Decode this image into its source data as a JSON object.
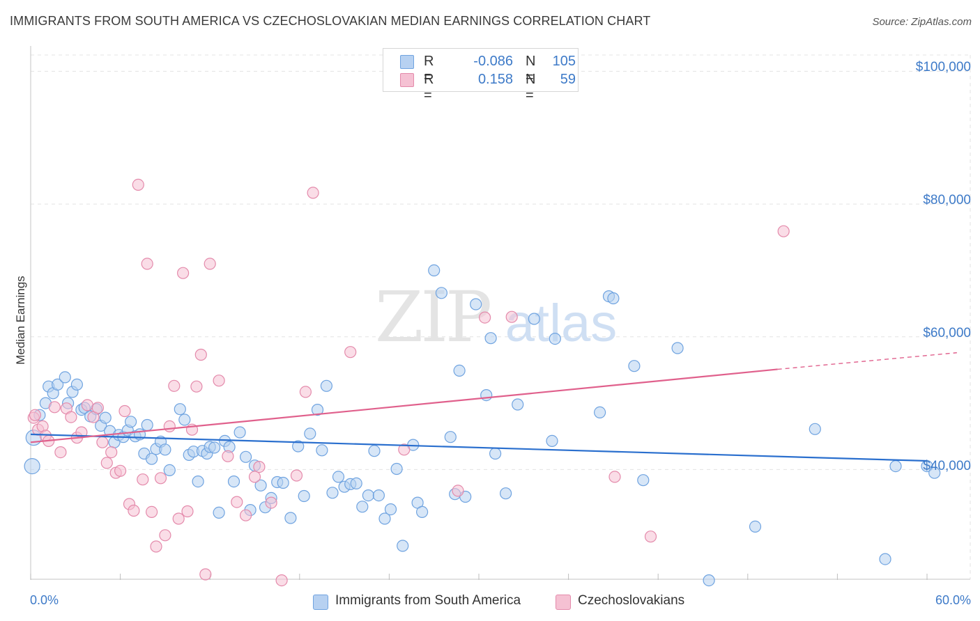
{
  "title": "IMMIGRANTS FROM SOUTH AMERICA VS CZECHOSLOVAKIAN MEDIAN EARNINGS CORRELATION CHART",
  "source": "Source: ZipAtlas.com",
  "watermark": {
    "zip": "ZIP",
    "atlas": "atlas"
  },
  "legend_top": [
    {
      "r_label": "R =",
      "r_value": "-0.086",
      "n_label": "N =",
      "n_value": "105"
    },
    {
      "r_label": "R =",
      "r_value": "0.158",
      "n_label": "N =",
      "n_value": "59"
    }
  ],
  "chart_data": {
    "type": "scatter",
    "title": "IMMIGRANTS FROM SOUTH AMERICA VS CZECHOSLOVAKIAN MEDIAN EARNINGS CORRELATION CHART",
    "xlabel": "",
    "ylabel": "Median Earnings",
    "xlim": [
      0,
      60
    ],
    "ylim": [
      22000,
      102000
    ],
    "x_tick_labels": [
      "0.0%",
      "60.0%"
    ],
    "y_ticks": [
      40000,
      60000,
      80000,
      100000
    ],
    "y_tick_labels": [
      "$40,000",
      "$60,000",
      "$80,000",
      "$100,000"
    ],
    "grid": true,
    "legend_position": "bottom",
    "series": [
      {
        "name": "Immigrants from South America",
        "color": "#6fa3e0",
        "fill": "#b7d1f1",
        "trend": {
          "x": [
            0,
            60
          ],
          "y": [
            45300,
            41300
          ],
          "color": "#2a6fce"
        },
        "points": [
          [
            0.1,
            40500
          ],
          [
            0.2,
            44800
          ],
          [
            0.6,
            48200
          ],
          [
            1.0,
            50000
          ],
          [
            1.2,
            52500
          ],
          [
            1.5,
            51500
          ],
          [
            1.8,
            52800
          ],
          [
            2.3,
            53900
          ],
          [
            2.5,
            50000
          ],
          [
            2.8,
            51700
          ],
          [
            3.1,
            52800
          ],
          [
            3.4,
            49000
          ],
          [
            3.6,
            49300
          ],
          [
            4.0,
            48000
          ],
          [
            4.4,
            49100
          ],
          [
            4.7,
            46600
          ],
          [
            5.0,
            47800
          ],
          [
            5.3,
            45800
          ],
          [
            5.6,
            44100
          ],
          [
            5.9,
            45200
          ],
          [
            6.2,
            44900
          ],
          [
            6.5,
            45900
          ],
          [
            6.7,
            47200
          ],
          [
            7.0,
            45000
          ],
          [
            7.3,
            45300
          ],
          [
            7.6,
            42400
          ],
          [
            7.8,
            46700
          ],
          [
            8.1,
            41600
          ],
          [
            8.4,
            43100
          ],
          [
            8.7,
            44200
          ],
          [
            9.0,
            43000
          ],
          [
            9.3,
            39900
          ],
          [
            10.0,
            49100
          ],
          [
            10.3,
            47500
          ],
          [
            10.6,
            42200
          ],
          [
            10.9,
            42700
          ],
          [
            11.2,
            38200
          ],
          [
            11.5,
            42800
          ],
          [
            11.8,
            42400
          ],
          [
            12.0,
            43400
          ],
          [
            12.3,
            43300
          ],
          [
            12.6,
            33500
          ],
          [
            13.0,
            44300
          ],
          [
            13.3,
            43400
          ],
          [
            13.6,
            38200
          ],
          [
            14.0,
            45600
          ],
          [
            14.4,
            41900
          ],
          [
            14.7,
            33900
          ],
          [
            15.0,
            40600
          ],
          [
            15.4,
            37600
          ],
          [
            15.7,
            34300
          ],
          [
            16.1,
            35700
          ],
          [
            16.5,
            38100
          ],
          [
            16.9,
            38000
          ],
          [
            17.4,
            32700
          ],
          [
            17.9,
            43500
          ],
          [
            18.3,
            36000
          ],
          [
            18.7,
            45400
          ],
          [
            19.2,
            49000
          ],
          [
            19.5,
            42900
          ],
          [
            19.8,
            52600
          ],
          [
            20.2,
            36500
          ],
          [
            20.6,
            38900
          ],
          [
            21.0,
            37400
          ],
          [
            21.4,
            37800
          ],
          [
            21.8,
            37900
          ],
          [
            22.2,
            34400
          ],
          [
            22.6,
            36100
          ],
          [
            23.0,
            42800
          ],
          [
            23.3,
            36100
          ],
          [
            23.7,
            32600
          ],
          [
            24.1,
            34000
          ],
          [
            24.5,
            40100
          ],
          [
            24.9,
            28500
          ],
          [
            25.6,
            43700
          ],
          [
            25.9,
            35000
          ],
          [
            26.2,
            33600
          ],
          [
            27.0,
            70000
          ],
          [
            27.5,
            66600
          ],
          [
            28.1,
            44900
          ],
          [
            28.4,
            36300
          ],
          [
            28.7,
            54900
          ],
          [
            29.1,
            35900
          ],
          [
            29.8,
            64900
          ],
          [
            30.5,
            51200
          ],
          [
            30.8,
            59800
          ],
          [
            31.1,
            42400
          ],
          [
            31.8,
            36400
          ],
          [
            32.6,
            49800
          ],
          [
            33.7,
            62700
          ],
          [
            34.9,
            44300
          ],
          [
            35.1,
            59700
          ],
          [
            38.1,
            48600
          ],
          [
            38.7,
            66100
          ],
          [
            39.0,
            65800
          ],
          [
            40.4,
            55600
          ],
          [
            41.0,
            38400
          ],
          [
            43.3,
            58300
          ],
          [
            45.4,
            23300
          ],
          [
            48.5,
            31400
          ],
          [
            52.5,
            46100
          ],
          [
            57.2,
            26500
          ],
          [
            60.0,
            40500
          ],
          [
            60.5,
            39500
          ],
          [
            57.9,
            40500
          ]
        ]
      },
      {
        "name": "Czechoslovakians",
        "color": "#e48aab",
        "fill": "#f5c1d3",
        "trend": {
          "x": [
            0,
            50
          ],
          "y": [
            44100,
            55100
          ],
          "dash_x": [
            50,
            62
          ],
          "dash_y": [
            55100,
            57600
          ],
          "color": "#e0608c"
        },
        "points": [
          [
            0.2,
            47800
          ],
          [
            0.3,
            48200
          ],
          [
            0.5,
            46000
          ],
          [
            0.8,
            46500
          ],
          [
            1.0,
            45100
          ],
          [
            1.2,
            44300
          ],
          [
            1.6,
            49400
          ],
          [
            2.0,
            42600
          ],
          [
            2.4,
            49200
          ],
          [
            2.7,
            47900
          ],
          [
            3.1,
            44800
          ],
          [
            3.4,
            45600
          ],
          [
            3.8,
            49700
          ],
          [
            4.2,
            47900
          ],
          [
            4.5,
            49300
          ],
          [
            4.8,
            44100
          ],
          [
            5.1,
            41000
          ],
          [
            5.4,
            42600
          ],
          [
            5.7,
            39500
          ],
          [
            6.0,
            39800
          ],
          [
            6.3,
            48800
          ],
          [
            6.6,
            34800
          ],
          [
            6.9,
            33800
          ],
          [
            7.2,
            82900
          ],
          [
            7.5,
            38500
          ],
          [
            7.8,
            71000
          ],
          [
            8.1,
            33600
          ],
          [
            8.4,
            28400
          ],
          [
            8.7,
            38700
          ],
          [
            9.0,
            30100
          ],
          [
            9.3,
            46500
          ],
          [
            9.6,
            52600
          ],
          [
            9.9,
            32600
          ],
          [
            10.2,
            69600
          ],
          [
            10.5,
            33700
          ],
          [
            10.8,
            46000
          ],
          [
            11.1,
            52500
          ],
          [
            11.4,
            57300
          ],
          [
            11.7,
            24200
          ],
          [
            12.0,
            71000
          ],
          [
            12.6,
            53400
          ],
          [
            13.2,
            42000
          ],
          [
            13.8,
            35100
          ],
          [
            14.4,
            33100
          ],
          [
            15.0,
            38900
          ],
          [
            15.3,
            40400
          ],
          [
            16.1,
            35000
          ],
          [
            16.8,
            23300
          ],
          [
            17.8,
            39100
          ],
          [
            18.4,
            51700
          ],
          [
            18.9,
            81700
          ],
          [
            21.4,
            57700
          ],
          [
            25.0,
            43000
          ],
          [
            28.6,
            36800
          ],
          [
            30.4,
            62900
          ],
          [
            32.2,
            63000
          ],
          [
            39.1,
            38900
          ],
          [
            41.5,
            29900
          ],
          [
            50.4,
            75900
          ]
        ]
      }
    ]
  },
  "legend_bottom": [
    {
      "label": "Immigrants from South America"
    },
    {
      "label": "Czechoslovakians"
    }
  ]
}
